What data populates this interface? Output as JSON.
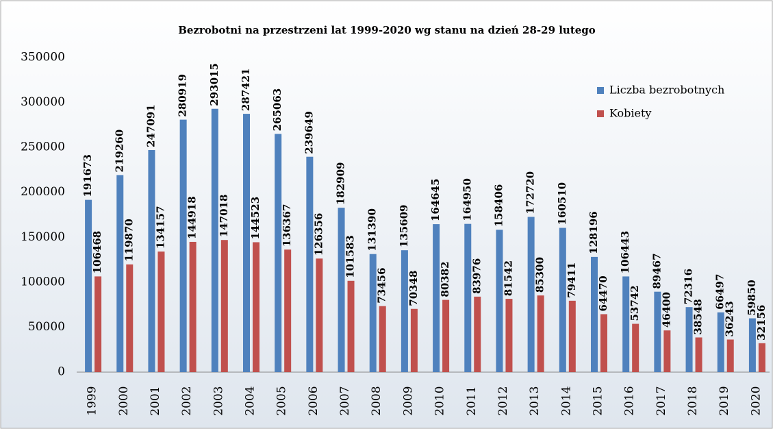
{
  "chart_data": {
    "type": "bar",
    "title": "Bezrobotni na przestrzeni lat 1999-2020 wg stanu na dzień 28-29 lutego",
    "categories": [
      "1999",
      "2000",
      "2001",
      "2002",
      "2003",
      "2004",
      "2005",
      "2006",
      "2007",
      "2008",
      "2009",
      "2010",
      "2011",
      "2012",
      "2013",
      "2014",
      "2015",
      "2016",
      "2017",
      "2018",
      "2019",
      "2020"
    ],
    "series": [
      {
        "name": "Liczba bezrobotnych",
        "color": "#4f81bd",
        "values": [
          191673,
          219260,
          247091,
          280919,
          293015,
          287421,
          265063,
          239649,
          182909,
          131390,
          135609,
          164645,
          164950,
          158406,
          172720,
          160510,
          128196,
          106443,
          89467,
          72316,
          66497,
          59850
        ]
      },
      {
        "name": "Kobiety",
        "color": "#c0504d",
        "values": [
          106468,
          119870,
          134157,
          144918,
          147018,
          144523,
          136367,
          126356,
          101583,
          73456,
          70348,
          80382,
          83976,
          81542,
          85300,
          79411,
          64470,
          53742,
          46400,
          38548,
          36243,
          32156
        ]
      }
    ],
    "ylim": [
      0,
      350000
    ],
    "yticks": [
      0,
      50000,
      100000,
      150000,
      200000,
      250000,
      300000,
      350000
    ],
    "legend": "top-right"
  }
}
